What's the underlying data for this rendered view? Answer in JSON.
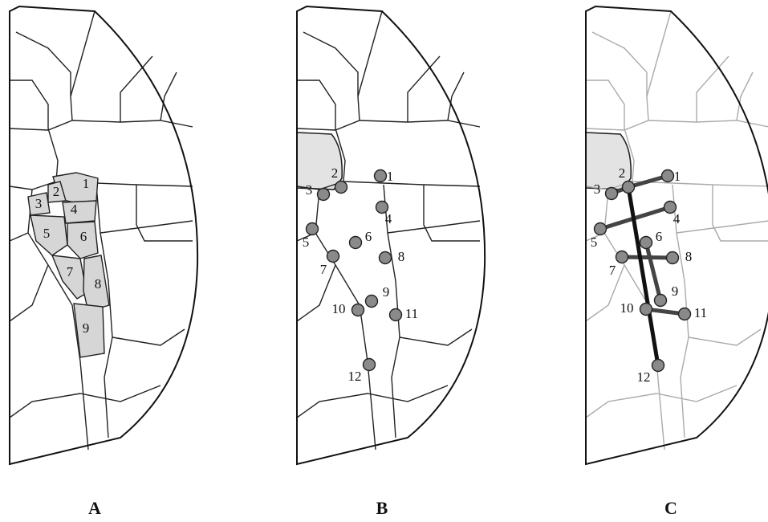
{
  "panels": [
    {
      "label": "A",
      "regions": [
        "1",
        "2",
        "3",
        "4",
        "5",
        "6",
        "7",
        "8",
        "9"
      ]
    },
    {
      "label": "B",
      "nodes": [
        "1",
        "2",
        "3",
        "4",
        "5",
        "6",
        "7",
        "8",
        "9",
        "10",
        "11",
        "12"
      ]
    },
    {
      "label": "C",
      "nodes": [
        "1",
        "2",
        "3",
        "4",
        "5",
        "6",
        "7",
        "8",
        "9",
        "10",
        "11",
        "12"
      ]
    }
  ]
}
